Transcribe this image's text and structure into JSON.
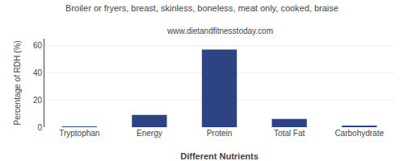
{
  "chart_data": {
    "type": "bar",
    "title": "Broiler or fryers, breast, skinless, boneless, meat only, cooked, braise",
    "subtitle": "www.dietandfitnesstoday.com",
    "categories": [
      "Tryptophan",
      "Energy",
      "Protein",
      "Total Fat",
      "Carbohydrate"
    ],
    "values": [
      0.5,
      9,
      57,
      6,
      1
    ],
    "color": "#2e4482",
    "xlabel": "Different Nutrients",
    "ylabel": "Percentage of RDH (%)",
    "ylim": [
      0,
      65
    ],
    "yticks": [
      0,
      20,
      40,
      60
    ],
    "grid": true
  }
}
